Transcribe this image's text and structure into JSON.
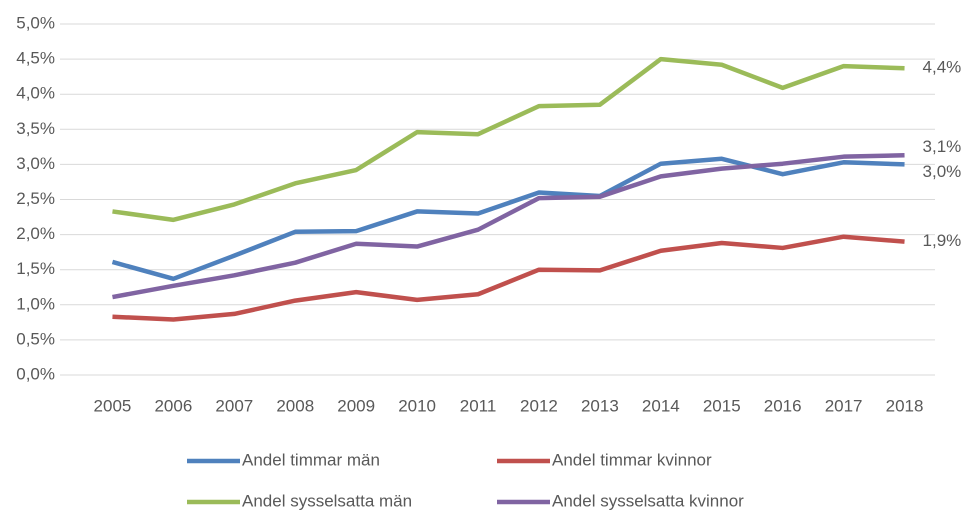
{
  "chart_data": {
    "type": "line",
    "categories": [
      "2005",
      "2006",
      "2007",
      "2008",
      "2009",
      "2010",
      "2011",
      "2012",
      "2013",
      "2014",
      "2015",
      "2016",
      "2017",
      "2018"
    ],
    "ylim": [
      0,
      5
    ],
    "yticks": [
      {
        "value": 0,
        "label": "0,0%"
      },
      {
        "value": 0.5,
        "label": "0,5%"
      },
      {
        "value": 1,
        "label": "1,0%"
      },
      {
        "value": 1.5,
        "label": "1,5%"
      },
      {
        "value": 2,
        "label": "2,0%"
      },
      {
        "value": 2.5,
        "label": "2,5%"
      },
      {
        "value": 3,
        "label": "3,0%"
      },
      {
        "value": 3.5,
        "label": "3,5%"
      },
      {
        "value": 4,
        "label": "4,0%"
      },
      {
        "value": 4.5,
        "label": "4,5%"
      },
      {
        "value": 5,
        "label": "5,0%"
      }
    ],
    "grid": true,
    "legend": "bottom",
    "series": [
      {
        "name": "Andel timmar män",
        "color": "#4f81bd",
        "values": [
          1.61,
          1.37,
          1.7,
          2.04,
          2.05,
          2.33,
          2.3,
          2.6,
          2.55,
          3.01,
          3.08,
          2.86,
          3.03,
          3.0
        ],
        "value_labels": [
          null,
          null,
          null,
          null,
          null,
          null,
          null,
          null,
          null,
          null,
          null,
          null,
          null,
          "3,0%"
        ]
      },
      {
        "name": "Andel timmar kvinnor",
        "color": "#c0504d",
        "values": [
          0.83,
          0.79,
          0.87,
          1.06,
          1.18,
          1.07,
          1.15,
          1.5,
          1.49,
          1.77,
          1.88,
          1.81,
          1.97,
          1.9
        ],
        "value_labels": [
          null,
          null,
          null,
          null,
          null,
          null,
          null,
          null,
          null,
          null,
          null,
          null,
          null,
          "1,9%"
        ]
      },
      {
        "name": "Andel sysselsatta män",
        "color": "#9bbb59",
        "values": [
          2.33,
          2.21,
          2.43,
          2.73,
          2.92,
          3.46,
          3.43,
          3.83,
          3.85,
          4.5,
          4.42,
          4.09,
          4.4,
          4.37
        ],
        "value_labels": [
          null,
          null,
          null,
          null,
          null,
          null,
          null,
          null,
          null,
          null,
          null,
          null,
          null,
          "4,4%"
        ]
      },
      {
        "name": "Andel sysselsatta kvinnor",
        "color": "#8064a2",
        "values": [
          1.11,
          1.27,
          1.42,
          1.6,
          1.87,
          1.83,
          2.07,
          2.52,
          2.54,
          2.83,
          2.94,
          3.01,
          3.11,
          3.13
        ],
        "value_labels": [
          null,
          null,
          null,
          null,
          null,
          null,
          null,
          null,
          null,
          null,
          null,
          null,
          null,
          "3,1%"
        ]
      }
    ]
  }
}
